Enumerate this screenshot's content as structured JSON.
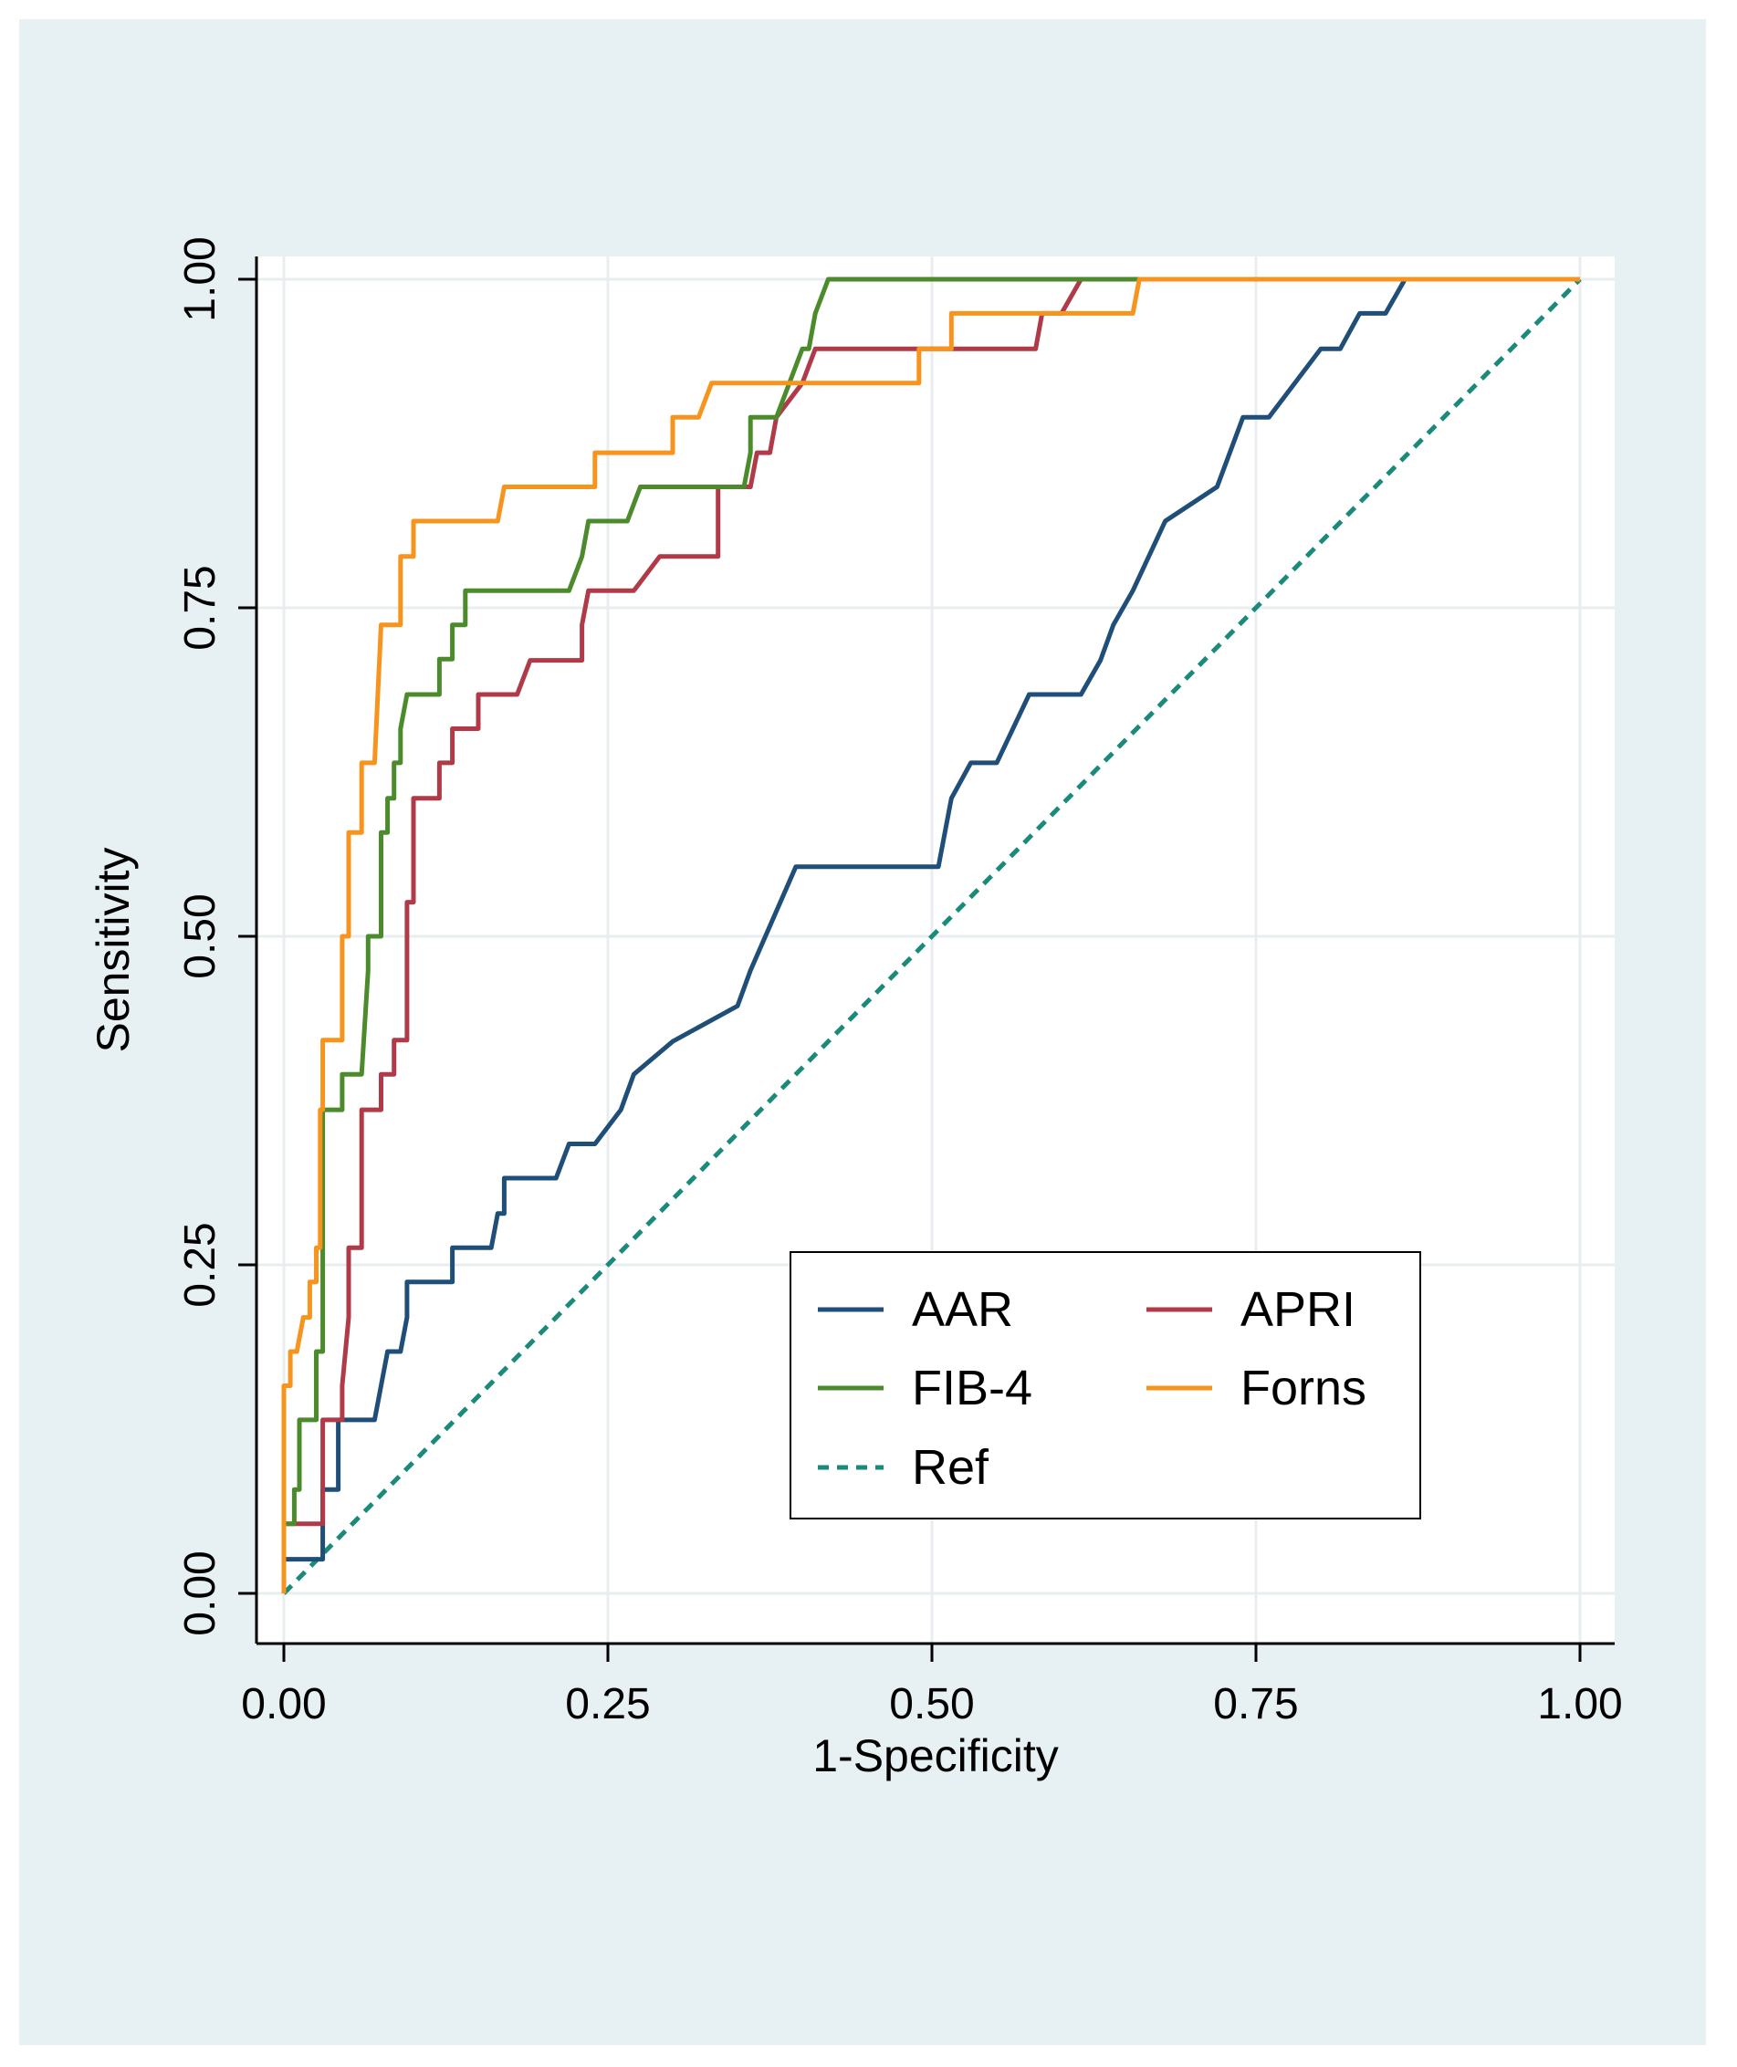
{
  "chart_data": {
    "type": "line",
    "title": "",
    "xlabel": "1-Specificity",
    "ylabel": "Sensitivity",
    "xlim": [
      0,
      1
    ],
    "ylim": [
      0,
      1
    ],
    "xticks": [
      "0.00",
      "0.25",
      "0.50",
      "0.75",
      "1.00"
    ],
    "yticks": [
      "0.00",
      "0.25",
      "0.50",
      "0.75",
      "1.00"
    ],
    "grid": true,
    "legend_position": "bottom-right",
    "series": [
      {
        "name": "AAR",
        "color": "#1f4e79",
        "points": [
          [
            0,
            0
          ],
          [
            0,
            0.026
          ],
          [
            0.03,
            0.026
          ],
          [
            0.03,
            0.079
          ],
          [
            0.042,
            0.079
          ],
          [
            0.042,
            0.132
          ],
          [
            0.07,
            0.132
          ],
          [
            0.08,
            0.184
          ],
          [
            0.09,
            0.184
          ],
          [
            0.095,
            0.21
          ],
          [
            0.095,
            0.237
          ],
          [
            0.13,
            0.237
          ],
          [
            0.13,
            0.263
          ],
          [
            0.16,
            0.263
          ],
          [
            0.165,
            0.289
          ],
          [
            0.17,
            0.289
          ],
          [
            0.17,
            0.316
          ],
          [
            0.21,
            0.316
          ],
          [
            0.22,
            0.342
          ],
          [
            0.24,
            0.342
          ],
          [
            0.26,
            0.368
          ],
          [
            0.27,
            0.395
          ],
          [
            0.3,
            0.42
          ],
          [
            0.35,
            0.447
          ],
          [
            0.36,
            0.474
          ],
          [
            0.395,
            0.553
          ],
          [
            0.505,
            0.553
          ],
          [
            0.515,
            0.605
          ],
          [
            0.53,
            0.632
          ],
          [
            0.55,
            0.632
          ],
          [
            0.575,
            0.684
          ],
          [
            0.615,
            0.684
          ],
          [
            0.63,
            0.71
          ],
          [
            0.64,
            0.737
          ],
          [
            0.655,
            0.763
          ],
          [
            0.68,
            0.816
          ],
          [
            0.72,
            0.842
          ],
          [
            0.74,
            0.895
          ],
          [
            0.76,
            0.895
          ],
          [
            0.78,
            0.921
          ],
          [
            0.8,
            0.947
          ],
          [
            0.815,
            0.947
          ],
          [
            0.83,
            0.974
          ],
          [
            0.85,
            0.974
          ],
          [
            0.865,
            1.0
          ],
          [
            1.0,
            1.0
          ]
        ]
      },
      {
        "name": "APRI",
        "color": "#b03a48",
        "points": [
          [
            0,
            0
          ],
          [
            0,
            0.053
          ],
          [
            0.03,
            0.053
          ],
          [
            0.03,
            0.132
          ],
          [
            0.045,
            0.132
          ],
          [
            0.045,
            0.158
          ],
          [
            0.05,
            0.21
          ],
          [
            0.05,
            0.263
          ],
          [
            0.06,
            0.263
          ],
          [
            0.06,
            0.368
          ],
          [
            0.075,
            0.368
          ],
          [
            0.075,
            0.395
          ],
          [
            0.085,
            0.395
          ],
          [
            0.085,
            0.421
          ],
          [
            0.095,
            0.421
          ],
          [
            0.095,
            0.526
          ],
          [
            0.1,
            0.526
          ],
          [
            0.1,
            0.605
          ],
          [
            0.12,
            0.605
          ],
          [
            0.12,
            0.632
          ],
          [
            0.13,
            0.632
          ],
          [
            0.13,
            0.658
          ],
          [
            0.15,
            0.658
          ],
          [
            0.15,
            0.684
          ],
          [
            0.18,
            0.684
          ],
          [
            0.19,
            0.71
          ],
          [
            0.23,
            0.71
          ],
          [
            0.23,
            0.737
          ],
          [
            0.235,
            0.763
          ],
          [
            0.27,
            0.763
          ],
          [
            0.29,
            0.789
          ],
          [
            0.335,
            0.789
          ],
          [
            0.335,
            0.842
          ],
          [
            0.36,
            0.842
          ],
          [
            0.365,
            0.868
          ],
          [
            0.375,
            0.868
          ],
          [
            0.38,
            0.895
          ],
          [
            0.4,
            0.921
          ],
          [
            0.41,
            0.947
          ],
          [
            0.49,
            0.947
          ],
          [
            0.49,
            0.947
          ],
          [
            0.58,
            0.947
          ],
          [
            0.585,
            0.974
          ],
          [
            0.6,
            0.974
          ],
          [
            0.615,
            1.0
          ],
          [
            1.0,
            1.0
          ]
        ]
      },
      {
        "name": "FIB-4",
        "color": "#4c8b2b",
        "points": [
          [
            0,
            0
          ],
          [
            0,
            0.053
          ],
          [
            0.008,
            0.053
          ],
          [
            0.008,
            0.079
          ],
          [
            0.012,
            0.079
          ],
          [
            0.012,
            0.132
          ],
          [
            0.025,
            0.132
          ],
          [
            0.025,
            0.184
          ],
          [
            0.03,
            0.184
          ],
          [
            0.03,
            0.368
          ],
          [
            0.045,
            0.368
          ],
          [
            0.045,
            0.395
          ],
          [
            0.06,
            0.395
          ],
          [
            0.065,
            0.474
          ],
          [
            0.065,
            0.5
          ],
          [
            0.075,
            0.5
          ],
          [
            0.075,
            0.579
          ],
          [
            0.08,
            0.579
          ],
          [
            0.08,
            0.605
          ],
          [
            0.085,
            0.605
          ],
          [
            0.085,
            0.632
          ],
          [
            0.09,
            0.632
          ],
          [
            0.09,
            0.658
          ],
          [
            0.095,
            0.684
          ],
          [
            0.12,
            0.684
          ],
          [
            0.12,
            0.711
          ],
          [
            0.13,
            0.711
          ],
          [
            0.13,
            0.737
          ],
          [
            0.14,
            0.737
          ],
          [
            0.14,
            0.763
          ],
          [
            0.22,
            0.763
          ],
          [
            0.23,
            0.789
          ],
          [
            0.235,
            0.816
          ],
          [
            0.265,
            0.816
          ],
          [
            0.275,
            0.842
          ],
          [
            0.355,
            0.842
          ],
          [
            0.36,
            0.868
          ],
          [
            0.36,
            0.895
          ],
          [
            0.38,
            0.895
          ],
          [
            0.4,
            0.947
          ],
          [
            0.405,
            0.947
          ],
          [
            0.41,
            0.974
          ],
          [
            0.42,
            1.0
          ],
          [
            1.0,
            1.0
          ]
        ]
      },
      {
        "name": "Forns",
        "color": "#f7941d",
        "points": [
          [
            0,
            0
          ],
          [
            0,
            0.158
          ],
          [
            0.005,
            0.158
          ],
          [
            0.005,
            0.184
          ],
          [
            0.01,
            0.184
          ],
          [
            0.015,
            0.21
          ],
          [
            0.02,
            0.21
          ],
          [
            0.02,
            0.237
          ],
          [
            0.025,
            0.237
          ],
          [
            0.025,
            0.263
          ],
          [
            0.028,
            0.263
          ],
          [
            0.028,
            0.368
          ],
          [
            0.03,
            0.368
          ],
          [
            0.03,
            0.421
          ],
          [
            0.045,
            0.421
          ],
          [
            0.045,
            0.5
          ],
          [
            0.05,
            0.5
          ],
          [
            0.05,
            0.579
          ],
          [
            0.06,
            0.579
          ],
          [
            0.06,
            0.632
          ],
          [
            0.07,
            0.632
          ],
          [
            0.075,
            0.737
          ],
          [
            0.09,
            0.737
          ],
          [
            0.09,
            0.789
          ],
          [
            0.1,
            0.789
          ],
          [
            0.1,
            0.816
          ],
          [
            0.165,
            0.816
          ],
          [
            0.17,
            0.842
          ],
          [
            0.24,
            0.842
          ],
          [
            0.24,
            0.868
          ],
          [
            0.3,
            0.868
          ],
          [
            0.3,
            0.895
          ],
          [
            0.32,
            0.895
          ],
          [
            0.33,
            0.921
          ],
          [
            0.49,
            0.921
          ],
          [
            0.49,
            0.947
          ],
          [
            0.515,
            0.947
          ],
          [
            0.515,
            0.974
          ],
          [
            0.655,
            0.974
          ],
          [
            0.66,
            1.0
          ],
          [
            1.0,
            1.0
          ]
        ]
      },
      {
        "name": "Ref",
        "color": "#1a8a7a",
        "dashed": true,
        "points": [
          [
            0,
            0
          ],
          [
            1,
            1
          ]
        ]
      }
    ],
    "legend_order": [
      "AAR",
      "APRI",
      "FIB-4",
      "Forns",
      "Ref"
    ]
  }
}
